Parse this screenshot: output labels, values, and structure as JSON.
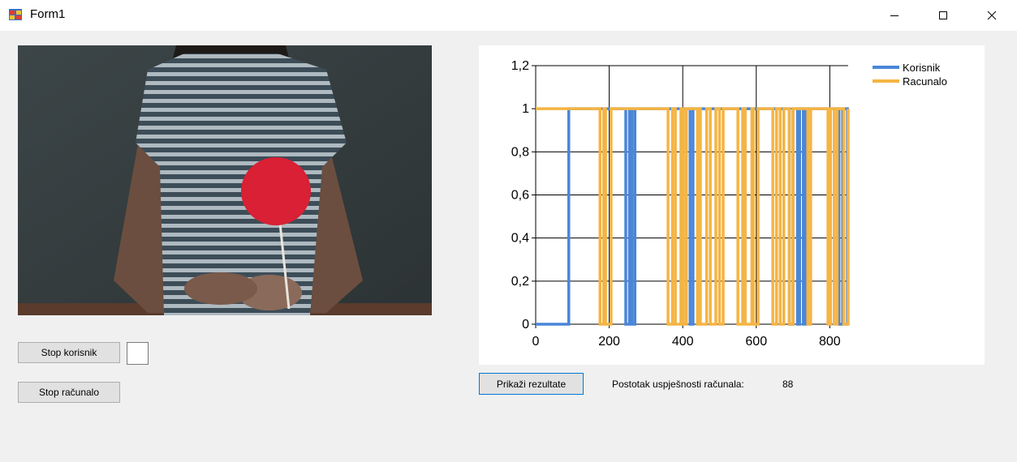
{
  "window": {
    "title": "Form1"
  },
  "controls": {
    "stop_user_label": "Stop korisnik",
    "stop_computer_label": "Stop računalo",
    "show_results_label": "Prikaži rezultate",
    "success_rate_label": "Postotak uspješnosti računala:",
    "success_rate_value": "88"
  },
  "icons": [
    "app-icon",
    "minimize-icon",
    "maximize-icon",
    "close-icon"
  ],
  "chart_data": {
    "type": "line",
    "title": "",
    "xlabel": "",
    "ylabel": "",
    "xlim": [
      0,
      850
    ],
    "ylim": [
      0,
      1.2
    ],
    "x_ticks": [
      "0",
      "200",
      "400",
      "600",
      "800"
    ],
    "y_ticks": [
      "0",
      "0,2",
      "0,4",
      "0,6",
      "0,8",
      "1",
      "1,2"
    ],
    "grid": true,
    "legend_position": "top-right",
    "series": [
      {
        "name": "Korisnik",
        "color": "#4a86d8",
        "step_points": [
          [
            0,
            0
          ],
          [
            90,
            0
          ],
          [
            90,
            1
          ],
          [
            245,
            1
          ],
          [
            245,
            0
          ],
          [
            255,
            0
          ],
          [
            255,
            1
          ],
          [
            262,
            1
          ],
          [
            262,
            0
          ],
          [
            270,
            0
          ],
          [
            270,
            1
          ],
          [
            420,
            1
          ],
          [
            420,
            0
          ],
          [
            428,
            0
          ],
          [
            428,
            1
          ],
          [
            690,
            1
          ],
          [
            690,
            0
          ],
          [
            700,
            0
          ],
          [
            700,
            1
          ],
          [
            712,
            1
          ],
          [
            712,
            0
          ],
          [
            718,
            0
          ],
          [
            718,
            1
          ],
          [
            728,
            1
          ],
          [
            728,
            0
          ],
          [
            735,
            0
          ],
          [
            735,
            1
          ],
          [
            825,
            1
          ],
          [
            825,
            0
          ],
          [
            835,
            0
          ],
          [
            835,
            1
          ],
          [
            848,
            1
          ],
          [
            848,
            0
          ],
          [
            850,
            0
          ]
        ]
      },
      {
        "name": "Racunalo",
        "color": "#f5b443",
        "step_points": [
          [
            0,
            1
          ],
          [
            175,
            1
          ],
          [
            175,
            0
          ],
          [
            185,
            0
          ],
          [
            185,
            1
          ],
          [
            190,
            1
          ],
          [
            190,
            0
          ],
          [
            205,
            0
          ],
          [
            205,
            1
          ],
          [
            360,
            1
          ],
          [
            360,
            0
          ],
          [
            372,
            0
          ],
          [
            372,
            1
          ],
          [
            380,
            1
          ],
          [
            380,
            0
          ],
          [
            395,
            0
          ],
          [
            395,
            1
          ],
          [
            402,
            1
          ],
          [
            402,
            0
          ],
          [
            410,
            0
          ],
          [
            410,
            1
          ],
          [
            440,
            1
          ],
          [
            440,
            0
          ],
          [
            445,
            0
          ],
          [
            445,
            1
          ],
          [
            448,
            1
          ],
          [
            448,
            0
          ],
          [
            465,
            0
          ],
          [
            465,
            1
          ],
          [
            475,
            1
          ],
          [
            475,
            0
          ],
          [
            490,
            0
          ],
          [
            490,
            1
          ],
          [
            500,
            1
          ],
          [
            500,
            0
          ],
          [
            510,
            0
          ],
          [
            510,
            1
          ],
          [
            550,
            1
          ],
          [
            550,
            0
          ],
          [
            563,
            0
          ],
          [
            563,
            1
          ],
          [
            570,
            1
          ],
          [
            570,
            0
          ],
          [
            588,
            0
          ],
          [
            588,
            1
          ],
          [
            592,
            1
          ],
          [
            592,
            0
          ],
          [
            605,
            0
          ],
          [
            605,
            1
          ],
          [
            645,
            1
          ],
          [
            645,
            0
          ],
          [
            655,
            0
          ],
          [
            655,
            1
          ],
          [
            665,
            1
          ],
          [
            665,
            0
          ],
          [
            675,
            0
          ],
          [
            675,
            1
          ],
          [
            690,
            1
          ],
          [
            690,
            0
          ],
          [
            700,
            0
          ],
          [
            700,
            1
          ],
          [
            740,
            1
          ],
          [
            740,
            0
          ],
          [
            748,
            0
          ],
          [
            748,
            1
          ],
          [
            795,
            1
          ],
          [
            795,
            0
          ],
          [
            802,
            0
          ],
          [
            802,
            1
          ],
          [
            812,
            1
          ],
          [
            812,
            0
          ],
          [
            820,
            0
          ],
          [
            820,
            1
          ],
          [
            838,
            1
          ],
          [
            838,
            0
          ],
          [
            850,
            0
          ],
          [
            850,
            1
          ]
        ]
      }
    ]
  }
}
